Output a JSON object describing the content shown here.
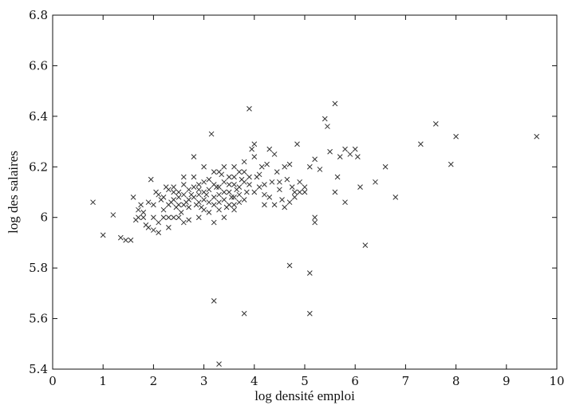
{
  "chart_data": {
    "type": "scatter",
    "title": "",
    "xlabel": "log densité emploi",
    "ylabel": "log des salaires",
    "xlim": [
      0,
      10
    ],
    "ylim": [
      5.4,
      6.8
    ],
    "x_ticks": [
      0,
      1,
      2,
      3,
      4,
      5,
      6,
      7,
      8,
      9,
      10
    ],
    "y_ticks": [
      5.4,
      5.6,
      5.8,
      6,
      6.2,
      6.4,
      6.6,
      6.8
    ],
    "x_tick_labels": [
      "0",
      "1",
      "2",
      "3",
      "4",
      "5",
      "6",
      "7",
      "8",
      "9",
      "10"
    ],
    "y_tick_labels": [
      "5.4",
      "5.6",
      "5.8",
      "6",
      "6.2",
      "6.4",
      "6.6",
      "6.8"
    ],
    "grid": false,
    "marker": "x",
    "points": [
      [
        0.8,
        6.06
      ],
      [
        1.0,
        5.93
      ],
      [
        1.2,
        6.01
      ],
      [
        1.35,
        5.92
      ],
      [
        1.45,
        5.91
      ],
      [
        1.55,
        5.91
      ],
      [
        1.6,
        6.08
      ],
      [
        1.65,
        5.99
      ],
      [
        1.7,
        6.0
      ],
      [
        1.75,
        6.05
      ],
      [
        1.8,
        6.02
      ],
      [
        1.85,
        5.97
      ],
      [
        1.9,
        5.96
      ],
      [
        1.95,
        6.15
      ],
      [
        2.0,
        5.95
      ],
      [
        2.05,
        6.1
      ],
      [
        2.1,
        5.94
      ],
      [
        2.15,
        6.07
      ],
      [
        2.2,
        6.03
      ],
      [
        2.25,
        6.12
      ],
      [
        2.3,
        6.0
      ],
      [
        2.35,
        6.06
      ],
      [
        2.4,
        6.1
      ],
      [
        2.45,
        6.04
      ],
      [
        2.5,
        6.08
      ],
      [
        2.55,
        6.02
      ],
      [
        2.6,
        6.13
      ],
      [
        2.65,
        6.06
      ],
      [
        2.7,
        5.99
      ],
      [
        2.75,
        6.09
      ],
      [
        2.8,
        6.24
      ],
      [
        2.85,
        6.05
      ],
      [
        2.9,
        6.11
      ],
      [
        2.95,
        6.04
      ],
      [
        3.0,
        6.14
      ],
      [
        3.05,
        6.09
      ],
      [
        3.1,
        6.02
      ],
      [
        3.15,
        6.33
      ],
      [
        3.2,
        6.08
      ],
      [
        3.25,
        6.12
      ],
      [
        3.3,
        6.06
      ],
      [
        3.35,
        6.17
      ],
      [
        3.4,
        6.1
      ],
      [
        3.45,
        6.04
      ],
      [
        3.5,
        6.13
      ],
      [
        3.55,
        6.08
      ],
      [
        3.6,
        6.2
      ],
      [
        3.65,
        6.11
      ],
      [
        3.7,
        6.06
      ],
      [
        3.75,
        6.15
      ],
      [
        3.8,
        6.22
      ],
      [
        3.85,
        6.1
      ],
      [
        3.9,
        6.43
      ],
      [
        3.95,
        6.27
      ],
      [
        4.0,
        6.29
      ],
      [
        4.05,
        6.16
      ],
      [
        4.1,
        6.12
      ],
      [
        4.15,
        6.2
      ],
      [
        4.2,
        6.09
      ],
      [
        4.25,
        6.21
      ],
      [
        4.3,
        6.27
      ],
      [
        4.35,
        6.14
      ],
      [
        4.4,
        6.25
      ],
      [
        4.45,
        6.18
      ],
      [
        4.5,
        6.11
      ],
      [
        4.55,
        6.07
      ],
      [
        4.6,
        6.2
      ],
      [
        4.65,
        6.15
      ],
      [
        4.7,
        6.21
      ],
      [
        4.75,
        6.12
      ],
      [
        4.8,
        6.08
      ],
      [
        4.85,
        6.29
      ],
      [
        4.9,
        6.14
      ],
      [
        5.0,
        6.12
      ],
      [
        5.1,
        6.2
      ],
      [
        5.2,
        6.23
      ],
      [
        5.3,
        6.19
      ],
      [
        5.4,
        6.39
      ],
      [
        5.45,
        6.36
      ],
      [
        5.5,
        6.26
      ],
      [
        5.6,
        6.45
      ],
      [
        5.65,
        6.16
      ],
      [
        5.7,
        6.24
      ],
      [
        5.8,
        6.27
      ],
      [
        5.9,
        6.25
      ],
      [
        6.0,
        6.27
      ],
      [
        6.05,
        6.24
      ],
      [
        6.1,
        6.12
      ],
      [
        6.4,
        6.14
      ],
      [
        6.6,
        6.2
      ],
      [
        6.8,
        6.08
      ],
      [
        7.3,
        6.29
      ],
      [
        7.6,
        6.37
      ],
      [
        7.9,
        6.21
      ],
      [
        8.0,
        6.32
      ],
      [
        9.6,
        6.32
      ],
      [
        1.7,
        6.03
      ],
      [
        2.0,
        6.05
      ],
      [
        2.1,
        6.09
      ],
      [
        2.3,
        6.05
      ],
      [
        2.4,
        6.07
      ],
      [
        2.6,
        6.05
      ],
      [
        2.7,
        6.11
      ],
      [
        2.8,
        6.08
      ],
      [
        2.9,
        6.06
      ],
      [
        3.0,
        6.07
      ],
      [
        3.1,
        6.11
      ],
      [
        3.2,
        6.13
      ],
      [
        3.3,
        6.09
      ],
      [
        3.4,
        6.07
      ],
      [
        3.5,
        6.1
      ],
      [
        3.6,
        6.08
      ],
      [
        3.7,
        6.12
      ],
      [
        3.8,
        6.14
      ],
      [
        2.5,
        6.0
      ],
      [
        2.7,
        6.04
      ],
      [
        2.9,
        6.0
      ],
      [
        3.1,
        6.06
      ],
      [
        3.3,
        6.12
      ],
      [
        3.5,
        6.16
      ],
      [
        3.7,
        6.18
      ],
      [
        3.9,
        6.16
      ],
      [
        4.1,
        6.17
      ],
      [
        2.2,
        6.08
      ],
      [
        2.4,
        6.12
      ],
      [
        2.6,
        6.09
      ],
      [
        2.8,
        6.12
      ],
      [
        3.0,
        6.1
      ],
      [
        3.2,
        6.05
      ],
      [
        3.4,
        6.14
      ],
      [
        3.6,
        6.05
      ],
      [
        3.8,
        6.07
      ],
      [
        4.0,
        6.1
      ],
      [
        4.2,
        6.13
      ],
      [
        1.9,
        6.06
      ],
      [
        2.0,
        6.0
      ],
      [
        2.3,
        6.11
      ],
      [
        2.5,
        6.05
      ],
      [
        2.7,
        6.07
      ],
      [
        2.9,
        6.09
      ],
      [
        3.1,
        6.15
      ],
      [
        3.3,
        6.03
      ],
      [
        3.5,
        6.05
      ],
      [
        3.7,
        6.09
      ],
      [
        3.9,
        6.13
      ],
      [
        4.4,
        6.05
      ],
      [
        4.6,
        6.04
      ],
      [
        4.8,
        6.1
      ],
      [
        5.0,
        6.1
      ],
      [
        5.2,
        6.0
      ],
      [
        4.3,
        6.08
      ],
      [
        4.5,
        6.14
      ],
      [
        4.7,
        6.06
      ],
      [
        4.9,
        6.1
      ],
      [
        5.6,
        6.1
      ],
      [
        5.8,
        6.06
      ],
      [
        3.2,
        6.18
      ],
      [
        3.4,
        6.2
      ],
      [
        3.6,
        6.16
      ],
      [
        3.8,
        6.18
      ],
      [
        2.6,
        6.16
      ],
      [
        2.8,
        6.16
      ],
      [
        3.0,
        6.2
      ],
      [
        2.4,
        6.0
      ],
      [
        2.2,
        6.0
      ],
      [
        3.0,
        6.03
      ],
      [
        3.6,
        6.13
      ],
      [
        4.0,
        6.24
      ],
      [
        4.2,
        6.05
      ],
      [
        3.3,
        6.18
      ],
      [
        2.9,
        6.13
      ],
      [
        2.5,
        6.1
      ],
      [
        1.8,
        6.0
      ],
      [
        2.1,
        5.98
      ],
      [
        2.3,
        5.96
      ],
      [
        2.6,
        5.98
      ],
      [
        3.2,
        5.98
      ],
      [
        3.4,
        6.0
      ],
      [
        3.6,
        6.03
      ],
      [
        4.7,
        5.81
      ],
      [
        5.1,
        5.78
      ],
      [
        5.2,
        5.98
      ],
      [
        6.2,
        5.89
      ],
      [
        3.8,
        5.62
      ],
      [
        5.1,
        5.62
      ],
      [
        3.2,
        5.67
      ],
      [
        3.3,
        5.42
      ]
    ]
  }
}
